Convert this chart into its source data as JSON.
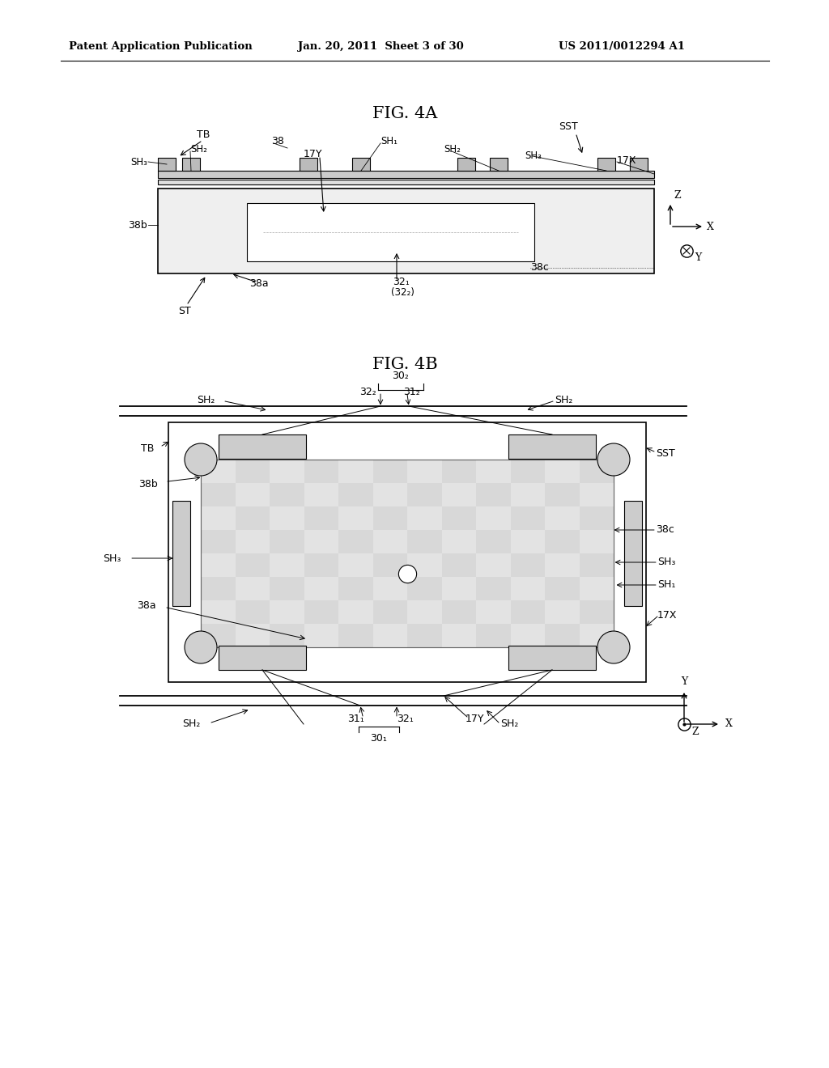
{
  "header_left": "Patent Application Publication",
  "header_mid": "Jan. 20, 2011  Sheet 3 of 30",
  "header_right": "US 2011/0012294 A1",
  "fig4a_title": "FIG. 4A",
  "fig4b_title": "FIG. 4B",
  "bg_color": "#ffffff",
  "line_color": "#000000"
}
